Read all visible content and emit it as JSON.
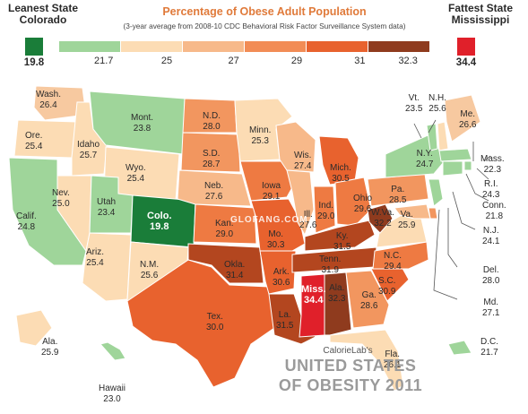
{
  "legend": {
    "leanest_title": "Leanest State",
    "leanest_state": "Colorado",
    "leanest_value": "19.8",
    "fattest_title": "Fattest State",
    "fattest_state": "Mississippi",
    "fattest_value": "34.4",
    "title": "Percentage of Obese Adult Population",
    "subtitle": "(3-year average from 2008-10 CDC Behavioral Risk Factor Surveillance System data)",
    "ticks": [
      "21.7",
      "25",
      "27",
      "29",
      "31",
      "32.3"
    ],
    "colors": [
      "#9fd59a",
      "#fcdcb4",
      "#f7b98a",
      "#f28c55",
      "#e8622e",
      "#8f3b1e"
    ],
    "lean_color": "#1a7d39",
    "fat_color": "#e0202a"
  },
  "states": [
    {
      "abbr": "Wash.",
      "value": "26.4",
      "color": "#f7c9a0"
    },
    {
      "abbr": "Ore.",
      "value": "25.4",
      "color": "#fcdcb4"
    },
    {
      "abbr": "Calif.",
      "value": "24.8",
      "color": "#9fd59a"
    },
    {
      "abbr": "Idaho",
      "value": "25.7",
      "color": "#fcdcb4"
    },
    {
      "abbr": "Nev.",
      "value": "25.0",
      "color": "#fcdcb4"
    },
    {
      "abbr": "Mont.",
      "value": "23.8",
      "color": "#9fd59a"
    },
    {
      "abbr": "Wyo.",
      "value": "25.4",
      "color": "#fcdcb4"
    },
    {
      "abbr": "Utah",
      "value": "23.4",
      "color": "#9fd59a"
    },
    {
      "abbr": "Colo.",
      "value": "19.8",
      "color": "#1a7d39"
    },
    {
      "abbr": "Ariz.",
      "value": "25.4",
      "color": "#fcdcb4"
    },
    {
      "abbr": "N.M.",
      "value": "25.6",
      "color": "#fcdcb4"
    },
    {
      "abbr": "N.D.",
      "value": "28.0",
      "color": "#f2965f"
    },
    {
      "abbr": "S.D.",
      "value": "28.7",
      "color": "#f2965f"
    },
    {
      "abbr": "Neb.",
      "value": "27.6",
      "color": "#f7b98a"
    },
    {
      "abbr": "Kan.",
      "value": "29.0",
      "color": "#ee7a42"
    },
    {
      "abbr": "Okla.",
      "value": "31.4",
      "color": "#b3461f"
    },
    {
      "abbr": "Tex.",
      "value": "30.0",
      "color": "#e8622e"
    },
    {
      "abbr": "Minn.",
      "value": "25.3",
      "color": "#fcdcb4"
    },
    {
      "abbr": "Iowa",
      "value": "29.1",
      "color": "#ee7a42"
    },
    {
      "abbr": "Mo.",
      "value": "30.3",
      "color": "#e8622e"
    },
    {
      "abbr": "Ark.",
      "value": "30.6",
      "color": "#e8622e"
    },
    {
      "abbr": "La.",
      "value": "31.5",
      "color": "#b3461f"
    },
    {
      "abbr": "Wis.",
      "value": "27.4",
      "color": "#f7b98a"
    },
    {
      "abbr": "Ill.",
      "value": "27.6",
      "color": "#f7b98a"
    },
    {
      "abbr": "Mich.",
      "value": "30.5",
      "color": "#e8622e"
    },
    {
      "abbr": "Ind.",
      "value": "29.0",
      "color": "#ee7a42"
    },
    {
      "abbr": "Ohio",
      "value": "29.6",
      "color": "#ee7a42"
    },
    {
      "abbr": "Ky.",
      "value": "31.5",
      "color": "#b3461f"
    },
    {
      "abbr": "Tenn.",
      "value": "31.9",
      "color": "#b3461f"
    },
    {
      "abbr": "Miss.",
      "value": "34.4",
      "color": "#e0202a"
    },
    {
      "abbr": "Ala.",
      "value": "32.3",
      "color": "#8f3b1e"
    },
    {
      "abbr": "Ga.",
      "value": "28.6",
      "color": "#f2965f"
    },
    {
      "abbr": "Fla.",
      "value": "26.1",
      "color": "#fcdcb4"
    },
    {
      "abbr": "S.C.",
      "value": "30.9",
      "color": "#e8622e"
    },
    {
      "abbr": "N.C.",
      "value": "29.4",
      "color": "#ee7a42"
    },
    {
      "abbr": "Va.",
      "value": "25.9",
      "color": "#fcdcb4"
    },
    {
      "abbr": "W.Va.",
      "value": "32.2",
      "color": "#8f3b1e"
    },
    {
      "abbr": "Pa.",
      "value": "28.5",
      "color": "#f2965f"
    },
    {
      "abbr": "N.Y.",
      "value": "24.7",
      "color": "#9fd59a"
    },
    {
      "abbr": "Vt.",
      "value": "23.5",
      "color": "#9fd59a"
    },
    {
      "abbr": "N.H.",
      "value": "25.6",
      "color": "#fcdcb4"
    },
    {
      "abbr": "Me.",
      "value": "26.6",
      "color": "#f7c9a0"
    },
    {
      "abbr": "Mass.",
      "value": "22.3",
      "color": "#9fd59a"
    },
    {
      "abbr": "R.I.",
      "value": "24.3",
      "color": "#9fd59a"
    },
    {
      "abbr": "Conn.",
      "value": "21.8",
      "color": "#9fd59a"
    },
    {
      "abbr": "N.J.",
      "value": "24.1",
      "color": "#9fd59a"
    },
    {
      "abbr": "Del.",
      "value": "28.0",
      "color": "#f2965f"
    },
    {
      "abbr": "Md.",
      "value": "27.1",
      "color": "#f7b98a"
    },
    {
      "abbr": "D.C.",
      "value": "21.7",
      "color": "#9fd59a"
    },
    {
      "abbr": "Ala.",
      "value": "25.9",
      "color": "#fcdcb4"
    },
    {
      "abbr": "Hawaii",
      "value": "23.0",
      "color": "#9fd59a"
    }
  ],
  "footer": {
    "brand": "CalorieLab's",
    "title_line1": "UNITED STATES",
    "title_line2": "OF OBESITY 2011"
  },
  "watermark": "GLOFANG.COM"
}
